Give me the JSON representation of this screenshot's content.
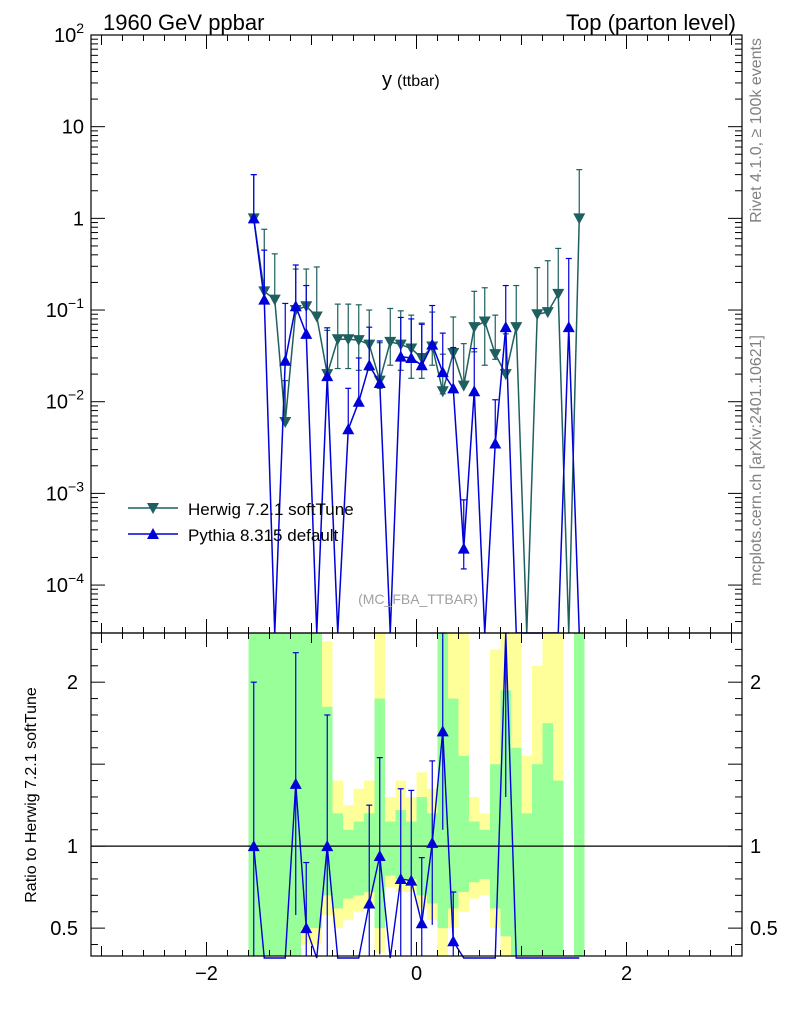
{
  "header": {
    "left": "1960 GeV ppbar",
    "right": "Top (parton level)"
  },
  "side": {
    "rivet": "Rivet 4.1.0, ≥ 100k events",
    "mcplots": "mcplots.cern.ch [arXiv:2401.10621]"
  },
  "colors": {
    "herwig": "#1f5f5f",
    "pythia": "#0000d8",
    "band_yellow": "#ffff99",
    "band_green": "#99ff99",
    "side_text": "#808080",
    "watermark": "#a0a0a0"
  },
  "chart_data": {
    "type": "line",
    "title": "y",
    "title_sub": "(ttbar)",
    "watermark": "(MC_FBA_TTBAR)",
    "xlabel": "",
    "ylabel_main": "",
    "ylabel_ratio": "Ratio to Herwig 7.2.1 softTune",
    "xlim": [
      -3.1,
      3.1
    ],
    "ylim_main": [
      3e-05,
      100
    ],
    "yscale_main": "log",
    "ylim_ratio": [
      0.33,
      2.3
    ],
    "x_ticks": [
      -2,
      0,
      2
    ],
    "x_tick_labels": [
      "−2",
      "0",
      "2"
    ],
    "main_ticks": [
      {
        "label_base": "10",
        "label_exp": "2",
        "value": 100
      },
      {
        "label_base": "10",
        "label_exp": "",
        "value": 10
      },
      {
        "label_base": "1",
        "label_exp": "",
        "value": 1
      },
      {
        "label_base": "10",
        "label_exp": "−1",
        "value": 0.1
      },
      {
        "label_base": "10",
        "label_exp": "−2",
        "value": 0.01
      },
      {
        "label_base": "10",
        "label_exp": "−3",
        "value": 0.001
      },
      {
        "label_base": "10",
        "label_exp": "−4",
        "value": 0.0001
      }
    ],
    "ratio_ticks": [
      {
        "label": "2",
        "value": 2
      },
      {
        "label": "1",
        "value": 1
      },
      {
        "label": "0.5",
        "value": 0.5
      }
    ],
    "legend": [
      {
        "key": "herwig",
        "label": "Herwig 7.2.1 softTune",
        "marker": "triangle-down"
      },
      {
        "key": "pythia",
        "label": "Pythia 8.315 default",
        "marker": "triangle-up"
      }
    ],
    "x": [
      -1.55,
      -1.45,
      -1.35,
      -1.25,
      -1.15,
      -1.05,
      -0.95,
      -0.85,
      -0.75,
      -0.65,
      -0.55,
      -0.45,
      -0.35,
      -0.25,
      -0.15,
      -0.05,
      0.05,
      0.15,
      0.25,
      0.35,
      0.45,
      0.55,
      0.65,
      0.75,
      0.85,
      0.95,
      1.05,
      1.15,
      1.25,
      1.35,
      1.45,
      1.55
    ],
    "series": [
      {
        "name": "Herwig 7.2.1 softTune",
        "values": [
          1.0,
          0.16,
          0.13,
          0.006,
          0.1,
          0.11,
          0.085,
          0.02,
          0.048,
          0.048,
          0.047,
          0.042,
          0.017,
          0.045,
          0.042,
          0.038,
          0.03,
          0.04,
          0.013,
          0.034,
          0.015,
          0.065,
          0.075,
          0.033,
          0.02,
          0.065,
          0.0,
          0.09,
          0.095,
          0.15,
          0.0,
          1.0
        ],
        "err_up": [
          2.0,
          0.6,
          0.28,
          0.011,
          0.18,
          0.17,
          0.21,
          0.04,
          0.068,
          0.068,
          0.067,
          0.058,
          0.027,
          0.059,
          0.056,
          0.05,
          0.042,
          0.055,
          0.02,
          0.05,
          0.028,
          0.095,
          0.1,
          0.055,
          0.035,
          0.12,
          0.0,
          0.2,
          0.25,
          0.32,
          0.0,
          2.4
        ],
        "err_down": [
          0.0001,
          0.0001,
          0.0001,
          0.0001,
          0.0001,
          0.0001,
          0.0001,
          0.0001,
          0.025,
          0.025,
          0.025,
          0.02,
          0.003,
          0.02,
          0.02,
          0.02,
          0.012,
          0.015,
          0.0008,
          0.0002,
          0.0001,
          0.03,
          0.05,
          0.004,
          0.0001,
          0.0001,
          0.0,
          0.0001,
          0.0001,
          0.0001,
          0.0,
          0.0001
        ]
      },
      {
        "name": "Pythia 8.315 default",
        "values": [
          1.0,
          0.13,
          0.0,
          0.028,
          0.11,
          0.055,
          0.0,
          0.019,
          0.0,
          0.005,
          0.01,
          0.025,
          0.016,
          0.0,
          0.031,
          0.03,
          0.025,
          0.042,
          0.021,
          0.014,
          0.00025,
          0.013,
          0.0,
          0.0035,
          0.065,
          0.0,
          0.0,
          0.0,
          0.0,
          0.0,
          0.065,
          0.0
        ],
        "err_up": [
          2.0,
          0.32,
          0.0,
          0.09,
          0.2,
          0.13,
          0.0,
          0.045,
          0.0,
          0.009,
          0.02,
          0.04,
          0.03,
          0.0,
          0.052,
          0.05,
          0.045,
          0.07,
          0.035,
          0.025,
          0.0006,
          0.025,
          0.0,
          0.007,
          0.12,
          0.0,
          0.0,
          0.0,
          0.0,
          0.0,
          0.3,
          0.0
        ],
        "err_down": [
          0.0001,
          0.0001,
          0.0,
          0.0001,
          0.0001,
          0.0001,
          0.0,
          0.0001,
          0.0,
          0.0001,
          0.0001,
          0.0001,
          0.0001,
          0.0,
          0.0001,
          0.0001,
          0.0001,
          0.0001,
          0.0001,
          0.0001,
          0.0001,
          0.0001,
          0.0,
          0.0001,
          0.0001,
          0.0,
          0.0,
          0.0,
          0.0,
          0.0,
          0.0001,
          0.0
        ]
      }
    ],
    "ratio": {
      "reference": 1.0,
      "band_yellow": [
        [
          0.0,
          2.3
        ],
        [
          0.0,
          2.3
        ],
        [
          0.0,
          2.3
        ],
        [
          0.0,
          2.3
        ],
        [
          0.0,
          2.3
        ],
        [
          0.4,
          2.3
        ],
        [
          0.4,
          2.3
        ],
        [
          0.58,
          2.25
        ],
        [
          0.5,
          1.4
        ],
        [
          0.55,
          1.25
        ],
        [
          0.6,
          1.35
        ],
        [
          0.62,
          1.4
        ],
        [
          0.35,
          2.3
        ],
        [
          0.75,
          1.3
        ],
        [
          0.72,
          1.4
        ],
        [
          0.72,
          1.3
        ],
        [
          0.62,
          1.45
        ],
        [
          0.55,
          1.35
        ],
        [
          0.3,
          2.3
        ],
        [
          0.5,
          2.3
        ],
        [
          0.6,
          2.3
        ],
        [
          0.68,
          1.3
        ],
        [
          0.7,
          1.2
        ],
        [
          0.5,
          2.2
        ],
        [
          0.3,
          2.3
        ],
        [
          0.0,
          2.3
        ],
        [
          0.0,
          1.55
        ],
        [
          0.0,
          2.1
        ],
        [
          0.0,
          2.3
        ],
        [
          0.0,
          2.3
        ],
        [
          0.0,
          0.0
        ],
        [
          0.0,
          2.3
        ]
      ],
      "band_green": [
        [
          0.0,
          2.3
        ],
        [
          0.0,
          2.3
        ],
        [
          0.0,
          2.3
        ],
        [
          0.0,
          2.3
        ],
        [
          0.0,
          2.3
        ],
        [
          0.5,
          2.3
        ],
        [
          0.5,
          2.3
        ],
        [
          0.7,
          1.85
        ],
        [
          0.62,
          1.2
        ],
        [
          0.68,
          1.1
        ],
        [
          0.7,
          1.15
        ],
        [
          0.72,
          1.2
        ],
        [
          0.5,
          1.9
        ],
        [
          0.82,
          1.15
        ],
        [
          0.8,
          1.22
        ],
        [
          0.8,
          1.15
        ],
        [
          0.7,
          1.3
        ],
        [
          0.65,
          1.2
        ],
        [
          0.5,
          2.3
        ],
        [
          0.62,
          1.9
        ],
        [
          0.72,
          1.55
        ],
        [
          0.78,
          1.15
        ],
        [
          0.8,
          1.1
        ],
        [
          0.62,
          1.5
        ],
        [
          0.45,
          1.95
        ],
        [
          0.0,
          1.6
        ],
        [
          0.0,
          1.2
        ],
        [
          0.0,
          1.5
        ],
        [
          0.0,
          1.75
        ],
        [
          0.0,
          1.4
        ],
        [
          0.0,
          0.0
        ],
        [
          0.0,
          2.3
        ]
      ],
      "pythia_values": [
        1.0,
        0.0,
        0.0,
        0.0,
        1.38,
        0.5,
        0.0,
        1.0,
        0.0,
        0.0,
        0.0,
        0.65,
        0.94,
        0.0,
        0.8,
        0.79,
        0.53,
        1.02,
        1.7,
        0.42,
        0.0,
        0.0,
        0.0,
        0.0,
        2.3,
        0.0,
        0.0,
        0.0,
        0.0,
        0.0,
        0.0,
        0.0
      ],
      "pythia_err": [
        1.0,
        0.0,
        0.0,
        0.0,
        0.8,
        0.4,
        0.0,
        0.8,
        0.0,
        0.0,
        0.0,
        0.6,
        0.6,
        0.0,
        0.55,
        0.55,
        0.4,
        0.5,
        0.6,
        0.3,
        0.0,
        0.0,
        0.0,
        0.0,
        1.0,
        0.0,
        0.0,
        0.0,
        0.0,
        0.0,
        0.0,
        0.0
      ]
    }
  }
}
